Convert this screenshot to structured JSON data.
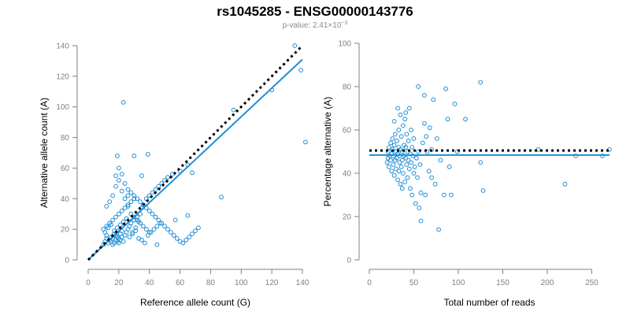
{
  "header": {
    "title": "rs1045285 - ENSG00000143776",
    "pvalue_prefix": "p-value: 2.41×10",
    "pvalue_exponent": "−3"
  },
  "colors": {
    "points": "#1f8ed6",
    "fit_line": "#1f8ed6",
    "reference_line": "#000000",
    "axes": "#808080"
  },
  "chart_data": [
    {
      "type": "scatter",
      "title": "",
      "xlabel": "Reference allele count (G)",
      "ylabel": "Alternative allele count (A)",
      "xlim": [
        0,
        140
      ],
      "ylim": [
        0,
        140
      ],
      "xticks": [
        0,
        20,
        40,
        60,
        80,
        100,
        120,
        140
      ],
      "yticks": [
        0,
        20,
        40,
        60,
        80,
        100,
        120,
        140
      ],
      "grid": false,
      "series": [
        {
          "kind": "points",
          "points": [
            [
              10,
              10
            ],
            [
              11,
              12
            ],
            [
              12,
              14
            ],
            [
              12,
              16
            ],
            [
              13,
              11
            ],
            [
              14,
              13
            ],
            [
              15,
              12
            ],
            [
              15,
              15
            ],
            [
              16,
              10
            ],
            [
              16,
              14
            ],
            [
              17,
              11
            ],
            [
              17,
              17
            ],
            [
              18,
              13
            ],
            [
              18,
              16
            ],
            [
              19,
              12
            ],
            [
              19,
              15
            ],
            [
              20,
              11
            ],
            [
              20,
              14
            ],
            [
              21,
              13
            ],
            [
              21,
              17
            ],
            [
              22,
              15
            ],
            [
              22,
              19
            ],
            [
              23,
              12
            ],
            [
              24,
              16
            ],
            [
              25,
              18
            ],
            [
              26,
              20
            ],
            [
              27,
              22
            ],
            [
              28,
              24
            ],
            [
              29,
              18
            ],
            [
              30,
              26
            ],
            [
              31,
              21
            ],
            [
              32,
              28
            ],
            [
              33,
              25
            ],
            [
              34,
              30
            ],
            [
              35,
              34
            ],
            [
              36,
              36
            ],
            [
              38,
              40
            ],
            [
              40,
              42
            ],
            [
              42,
              44
            ],
            [
              44,
              46
            ],
            [
              46,
              48
            ],
            [
              48,
              50
            ],
            [
              50,
              52
            ],
            [
              52,
              54
            ],
            [
              55,
              56
            ],
            [
              60,
              58
            ],
            [
              65,
              62
            ],
            [
              10,
              20
            ],
            [
              12,
              22
            ],
            [
              14,
              24
            ],
            [
              16,
              26
            ],
            [
              18,
              28
            ],
            [
              20,
              30
            ],
            [
              22,
              32
            ],
            [
              24,
              34
            ],
            [
              26,
              36
            ],
            [
              28,
              38
            ],
            [
              30,
              40
            ],
            [
              11,
              18
            ],
            [
              13,
              21
            ],
            [
              15,
              23
            ],
            [
              17,
              19
            ],
            [
              19,
              21
            ],
            [
              21,
              23
            ],
            [
              23,
              25
            ],
            [
              25,
              27
            ],
            [
              27,
              15
            ],
            [
              29,
              17
            ],
            [
              31,
              19
            ],
            [
              33,
              14
            ],
            [
              35,
              13
            ],
            [
              37,
              11
            ],
            [
              39,
              16
            ],
            [
              41,
              18
            ],
            [
              43,
              20
            ],
            [
              45,
              22
            ],
            [
              47,
              24
            ],
            [
              18,
              55
            ],
            [
              20,
              60
            ],
            [
              22,
              45
            ],
            [
              24,
              40
            ],
            [
              26,
              35
            ],
            [
              28,
              30
            ],
            [
              30,
              28
            ],
            [
              32,
              26
            ],
            [
              34,
              24
            ],
            [
              36,
              22
            ],
            [
              38,
              20
            ],
            [
              40,
              18
            ],
            [
              12,
              35
            ],
            [
              14,
              38
            ],
            [
              16,
              42
            ],
            [
              18,
              48
            ],
            [
              20,
              52
            ],
            [
              22,
              56
            ],
            [
              24,
              50
            ],
            [
              26,
              46
            ],
            [
              28,
              44
            ],
            [
              30,
              42
            ],
            [
              32,
              40
            ],
            [
              34,
              38
            ],
            [
              36,
              36
            ],
            [
              38,
              34
            ],
            [
              40,
              32
            ],
            [
              42,
              30
            ],
            [
              44,
              28
            ],
            [
              46,
              26
            ],
            [
              48,
              24
            ],
            [
              50,
              22
            ],
            [
              52,
              20
            ],
            [
              54,
              18
            ],
            [
              56,
              16
            ],
            [
              58,
              14
            ],
            [
              60,
              12
            ],
            [
              62,
              11
            ],
            [
              64,
              13
            ],
            [
              66,
              15
            ],
            [
              68,
              17
            ],
            [
              70,
              19
            ],
            [
              72,
              21
            ],
            [
              23,
              103
            ],
            [
              30,
              68
            ],
            [
              39,
              69
            ],
            [
              19,
              68
            ],
            [
              35,
              55
            ],
            [
              26,
              42
            ],
            [
              45,
              10
            ],
            [
              65,
              29
            ],
            [
              57,
              26
            ],
            [
              68,
              57
            ],
            [
              87,
              41
            ],
            [
              95,
              98
            ],
            [
              120,
              111
            ],
            [
              135,
              140
            ],
            [
              139,
              124
            ],
            [
              142,
              77
            ]
          ]
        },
        {
          "kind": "fit",
          "name": "",
          "from": [
            0,
            0
          ],
          "to": [
            140,
            131
          ]
        },
        {
          "kind": "reference",
          "name": "",
          "from": [
            0,
            0
          ],
          "to": [
            140,
            140
          ]
        }
      ]
    },
    {
      "type": "scatter",
      "title": "",
      "xlabel": "Total number of reads",
      "ylabel": "Percentage alternative (A)",
      "xlim": [
        0,
        270
      ],
      "ylim": [
        0,
        100
      ],
      "xticks": [
        0,
        50,
        100,
        150,
        200,
        250
      ],
      "yticks": [
        0,
        20,
        40,
        60,
        80,
        100
      ],
      "grid": false,
      "series": [
        {
          "kind": "points",
          "points": [
            [
              20,
              45
            ],
            [
              21,
              47
            ],
            [
              21,
              50
            ],
            [
              22,
              43
            ],
            [
              22,
              52
            ],
            [
              23,
              48
            ],
            [
              24,
              46
            ],
            [
              24,
              54
            ],
            [
              25,
              41
            ],
            [
              25,
              49
            ],
            [
              26,
              51
            ],
            [
              26,
              56
            ],
            [
              27,
              44
            ],
            [
              27,
              48
            ],
            [
              28,
              53
            ],
            [
              28,
              39
            ],
            [
              29,
              46
            ],
            [
              29,
              58
            ],
            [
              30,
              50
            ],
            [
              30,
              42
            ],
            [
              31,
              47
            ],
            [
              31,
              55
            ],
            [
              32,
              49
            ],
            [
              32,
              37
            ],
            [
              33,
              52
            ],
            [
              33,
              60
            ],
            [
              34,
              45
            ],
            [
              34,
              48
            ],
            [
              35,
              51
            ],
            [
              35,
              35
            ],
            [
              36,
              57
            ],
            [
              36,
              43
            ],
            [
              37,
              46
            ],
            [
              37,
              50
            ],
            [
              38,
              62
            ],
            [
              38,
              40
            ],
            [
              39,
              53
            ],
            [
              39,
              48
            ],
            [
              40,
              36
            ],
            [
              40,
              65
            ],
            [
              41,
              47
            ],
            [
              41,
              52
            ],
            [
              42,
              44
            ],
            [
              42,
              58
            ],
            [
              43,
              50
            ],
            [
              43,
              38
            ],
            [
              44,
              55
            ],
            [
              44,
              46
            ],
            [
              45,
              70
            ],
            [
              45,
              42
            ],
            [
              46,
              49
            ],
            [
              46,
              33
            ],
            [
              47,
              60
            ],
            [
              47,
              45
            ],
            [
              48,
              52
            ],
            [
              48,
              30
            ],
            [
              49,
              48
            ],
            [
              50,
              56
            ],
            [
              50,
              40
            ],
            [
              51,
              43
            ],
            [
              52,
              26
            ],
            [
              53,
              47
            ],
            [
              54,
              38
            ],
            [
              55,
              80
            ],
            [
              55,
              50
            ],
            [
              56,
              24
            ],
            [
              57,
              44
            ],
            [
              58,
              31
            ],
            [
              58,
              18
            ],
            [
              60,
              54
            ],
            [
              62,
              76
            ],
            [
              62,
              63
            ],
            [
              63,
              30
            ],
            [
              64,
              57
            ],
            [
              65,
              50
            ],
            [
              67,
              41
            ],
            [
              68,
              61
            ],
            [
              70,
              51
            ],
            [
              70,
              38
            ],
            [
              72,
              74
            ],
            [
              74,
              35
            ],
            [
              76,
              56
            ],
            [
              78,
              14
            ],
            [
              80,
              46
            ],
            [
              84,
              30
            ],
            [
              86,
              79
            ],
            [
              88,
              65
            ],
            [
              90,
              43
            ],
            [
              92,
              30
            ],
            [
              96,
              72
            ],
            [
              99,
              50
            ],
            [
              108,
              65
            ],
            [
              125,
              82
            ],
            [
              125,
              45
            ],
            [
              128,
              32
            ],
            [
              190,
              51
            ],
            [
              220,
              35
            ],
            [
              232,
              48
            ],
            [
              262,
              48
            ],
            [
              270,
              51
            ],
            [
              32,
              70
            ],
            [
              35,
              67
            ],
            [
              28,
              64
            ],
            [
              41,
              68
            ],
            [
              37,
              33
            ],
            [
              33,
              41
            ]
          ]
        },
        {
          "kind": "fit",
          "name": "",
          "from": [
            0,
            48.4
          ],
          "to": [
            270,
            48.4
          ]
        },
        {
          "kind": "reference",
          "name": "",
          "from": [
            0,
            50.5
          ],
          "to": [
            270,
            50.5
          ]
        }
      ]
    }
  ]
}
